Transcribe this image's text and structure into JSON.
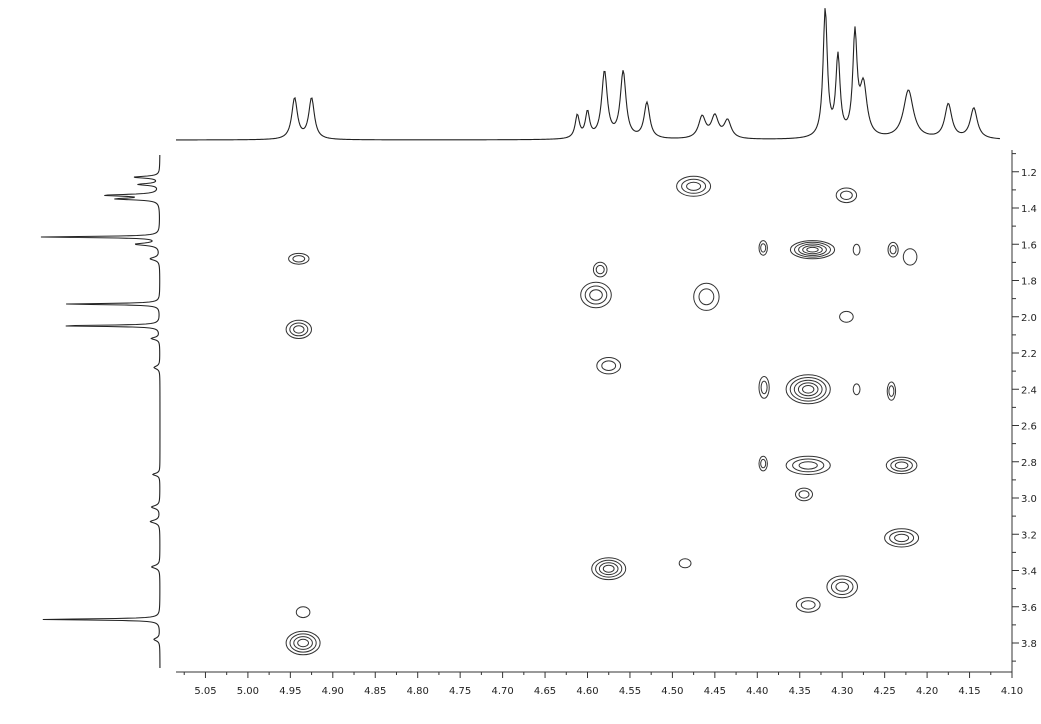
{
  "chart_data": {
    "type": "contour",
    "x_axis": {
      "range": [
        5.1,
        4.1
      ],
      "reversed": true,
      "ticks": [
        5.05,
        5.0,
        4.95,
        4.9,
        4.85,
        4.8,
        4.75,
        4.7,
        4.65,
        4.6,
        4.55,
        4.5,
        4.45,
        4.4,
        4.35,
        4.3,
        4.25,
        4.2,
        4.15,
        4.1
      ],
      "tick_labels": [
        "5.05",
        "5.00",
        "4.95",
        "4.90",
        "4.85",
        "4.80",
        "4.75",
        "4.70",
        "4.65",
        "4.60",
        "4.55",
        "4.50",
        "4.45",
        "4.40",
        "4.35",
        "4.30",
        "4.25",
        "4.20",
        "4.15",
        "4.10"
      ]
    },
    "y_axis": {
      "range": [
        1.08,
        3.96
      ],
      "reversed": true,
      "position": "right",
      "ticks": [
        1.2,
        1.4,
        1.6,
        1.8,
        2.0,
        2.2,
        2.4,
        2.6,
        2.8,
        3.0,
        3.2,
        3.4,
        3.6,
        3.8
      ],
      "tick_labels": [
        "1.2",
        "1.4",
        "1.6",
        "1.8",
        "2.0",
        "2.2",
        "2.4",
        "2.6",
        "2.8",
        "3.0",
        "3.2",
        "3.4",
        "3.6",
        "3.8"
      ]
    },
    "grid": false,
    "top_projection": {
      "peaks": [
        {
          "x": 4.945,
          "height": 0.32,
          "width": 0.004
        },
        {
          "x": 4.925,
          "height": 0.32,
          "width": 0.004
        },
        {
          "x": 4.612,
          "height": 0.18,
          "width": 0.003
        },
        {
          "x": 4.6,
          "height": 0.2,
          "width": 0.003
        },
        {
          "x": 4.58,
          "height": 0.52,
          "width": 0.004
        },
        {
          "x": 4.558,
          "height": 0.52,
          "width": 0.004
        },
        {
          "x": 4.53,
          "height": 0.28,
          "width": 0.004
        },
        {
          "x": 4.465,
          "height": 0.17,
          "width": 0.005
        },
        {
          "x": 4.45,
          "height": 0.17,
          "width": 0.005
        },
        {
          "x": 4.435,
          "height": 0.14,
          "width": 0.005
        },
        {
          "x": 4.32,
          "height": 1.0,
          "width": 0.003
        },
        {
          "x": 4.305,
          "height": 0.62,
          "width": 0.003
        },
        {
          "x": 4.285,
          "height": 0.78,
          "width": 0.003
        },
        {
          "x": 4.275,
          "height": 0.4,
          "width": 0.005
        },
        {
          "x": 4.222,
          "height": 0.38,
          "width": 0.007
        },
        {
          "x": 4.175,
          "height": 0.27,
          "width": 0.005
        },
        {
          "x": 4.145,
          "height": 0.24,
          "width": 0.005
        }
      ]
    },
    "left_projection": {
      "peaks": [
        {
          "y": 1.23,
          "height": 0.22,
          "width": 0.006
        },
        {
          "y": 1.27,
          "height": 0.18,
          "width": 0.006
        },
        {
          "y": 1.33,
          "height": 0.45,
          "width": 0.006
        },
        {
          "y": 1.35,
          "height": 0.35,
          "width": 0.006
        },
        {
          "y": 1.56,
          "height": 1.0,
          "width": 0.004
        },
        {
          "y": 1.6,
          "height": 0.2,
          "width": 0.008
        },
        {
          "y": 1.68,
          "height": 0.08,
          "width": 0.01
        },
        {
          "y": 1.93,
          "height": 0.8,
          "width": 0.004
        },
        {
          "y": 2.05,
          "height": 0.85,
          "width": 0.004
        },
        {
          "y": 2.12,
          "height": 0.07,
          "width": 0.008
        },
        {
          "y": 2.28,
          "height": 0.05,
          "width": 0.01
        },
        {
          "y": 2.87,
          "height": 0.06,
          "width": 0.008
        },
        {
          "y": 3.05,
          "height": 0.07,
          "width": 0.01
        },
        {
          "y": 3.13,
          "height": 0.08,
          "width": 0.01
        },
        {
          "y": 3.38,
          "height": 0.07,
          "width": 0.01
        },
        {
          "y": 3.67,
          "height": 1.0,
          "width": 0.004
        },
        {
          "y": 3.78,
          "height": 0.05,
          "width": 0.01
        }
      ]
    },
    "cross_peaks": [
      {
        "x": 4.94,
        "y": 1.68,
        "rx": 0.012,
        "ry": 0.03,
        "levels": 2
      },
      {
        "x": 4.94,
        "y": 2.07,
        "rx": 0.015,
        "ry": 0.05,
        "levels": 3
      },
      {
        "x": 4.935,
        "y": 3.63,
        "rx": 0.008,
        "ry": 0.03,
        "levels": 1
      },
      {
        "x": 4.935,
        "y": 3.8,
        "rx": 0.02,
        "ry": 0.065,
        "levels": 4
      },
      {
        "x": 4.585,
        "y": 1.74,
        "rx": 0.008,
        "ry": 0.04,
        "levels": 2
      },
      {
        "x": 4.59,
        "y": 1.88,
        "rx": 0.018,
        "ry": 0.07,
        "levels": 3
      },
      {
        "x": 4.575,
        "y": 2.27,
        "rx": 0.014,
        "ry": 0.045,
        "levels": 2
      },
      {
        "x": 4.575,
        "y": 3.39,
        "rx": 0.02,
        "ry": 0.06,
        "levels": 4
      },
      {
        "x": 4.475,
        "y": 1.28,
        "rx": 0.02,
        "ry": 0.055,
        "levels": 3
      },
      {
        "x": 4.46,
        "y": 1.89,
        "rx": 0.015,
        "ry": 0.075,
        "levels": 2
      },
      {
        "x": 4.485,
        "y": 3.36,
        "rx": 0.007,
        "ry": 0.025,
        "levels": 1
      },
      {
        "x": 4.295,
        "y": 1.33,
        "rx": 0.012,
        "ry": 0.04,
        "levels": 2
      },
      {
        "x": 4.335,
        "y": 1.63,
        "rx": 0.026,
        "ry": 0.05,
        "levels": 5
      },
      {
        "x": 4.393,
        "y": 1.62,
        "rx": 0.005,
        "ry": 0.04,
        "levels": 2
      },
      {
        "x": 4.283,
        "y": 1.63,
        "rx": 0.004,
        "ry": 0.03,
        "levels": 1
      },
      {
        "x": 4.24,
        "y": 1.63,
        "rx": 0.006,
        "ry": 0.04,
        "levels": 2
      },
      {
        "x": 4.22,
        "y": 1.67,
        "rx": 0.008,
        "ry": 0.045,
        "levels": 1
      },
      {
        "x": 4.295,
        "y": 2.0,
        "rx": 0.008,
        "ry": 0.03,
        "levels": 1
      },
      {
        "x": 4.34,
        "y": 2.4,
        "rx": 0.026,
        "ry": 0.08,
        "levels": 5
      },
      {
        "x": 4.392,
        "y": 2.39,
        "rx": 0.006,
        "ry": 0.06,
        "levels": 2
      },
      {
        "x": 4.283,
        "y": 2.4,
        "rx": 0.004,
        "ry": 0.03,
        "levels": 1
      },
      {
        "x": 4.242,
        "y": 2.41,
        "rx": 0.005,
        "ry": 0.05,
        "levels": 2
      },
      {
        "x": 4.34,
        "y": 2.82,
        "rx": 0.026,
        "ry": 0.05,
        "levels": 3
      },
      {
        "x": 4.393,
        "y": 2.81,
        "rx": 0.005,
        "ry": 0.04,
        "levels": 2
      },
      {
        "x": 4.23,
        "y": 2.82,
        "rx": 0.018,
        "ry": 0.045,
        "levels": 3
      },
      {
        "x": 4.345,
        "y": 2.98,
        "rx": 0.01,
        "ry": 0.035,
        "levels": 2
      },
      {
        "x": 4.23,
        "y": 3.22,
        "rx": 0.02,
        "ry": 0.05,
        "levels": 3
      },
      {
        "x": 4.3,
        "y": 3.49,
        "rx": 0.018,
        "ry": 0.06,
        "levels": 3
      },
      {
        "x": 4.34,
        "y": 3.59,
        "rx": 0.014,
        "ry": 0.04,
        "levels": 2
      }
    ]
  }
}
